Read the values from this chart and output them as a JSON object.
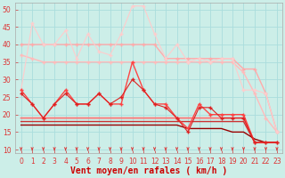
{
  "xlabel": "Vent moyen/en rafales ( km/h )",
  "bg_color": "#cceee8",
  "grid_color": "#aadddd",
  "x_ticks": [
    0,
    1,
    2,
    3,
    4,
    5,
    6,
    7,
    8,
    9,
    10,
    11,
    12,
    13,
    14,
    15,
    16,
    17,
    18,
    19,
    20,
    21,
    22,
    23
  ],
  "ylim": [
    9,
    52
  ],
  "xlim": [
    -0.5,
    23.5
  ],
  "yticks": [
    10,
    15,
    20,
    25,
    30,
    35,
    40,
    45,
    50
  ],
  "series": [
    {
      "x": [
        0,
        1,
        2,
        3,
        4,
        5,
        6,
        7,
        8,
        9,
        10,
        11,
        12,
        13,
        14,
        15,
        16,
        17,
        18,
        19,
        20,
        21,
        22,
        23
      ],
      "y": [
        40,
        40,
        40,
        40,
        40,
        40,
        40,
        40,
        40,
        40,
        40,
        40,
        40,
        36,
        36,
        36,
        36,
        36,
        36,
        36,
        33,
        33,
        26,
        15
      ],
      "color": "#ffaaaa",
      "lw": 1.0,
      "marker": "+",
      "ms": 3.0,
      "zorder": 2
    },
    {
      "x": [
        0,
        1,
        2,
        3,
        4,
        5,
        6,
        7,
        8,
        9,
        10,
        11,
        12,
        13,
        14,
        15,
        16,
        17,
        18,
        19,
        20,
        21,
        22,
        23
      ],
      "y": [
        37,
        36,
        35,
        35,
        35,
        35,
        35,
        35,
        35,
        35,
        35,
        35,
        35,
        35,
        35,
        35,
        35,
        35,
        35,
        35,
        32,
        26,
        19,
        15
      ],
      "color": "#ffbbbb",
      "lw": 1.0,
      "marker": "+",
      "ms": 3.0,
      "zorder": 2
    },
    {
      "x": [
        0,
        1,
        2,
        3,
        4,
        5,
        6,
        7,
        8,
        9,
        10,
        11,
        12,
        13,
        14,
        15,
        16,
        17,
        18,
        19,
        20,
        21,
        22,
        23
      ],
      "y": [
        27,
        46,
        40,
        40,
        44,
        36,
        43,
        38,
        37,
        43,
        51,
        51,
        43,
        36,
        40,
        35,
        36,
        35,
        36,
        36,
        27,
        27,
        26,
        15
      ],
      "color": "#ffcccc",
      "lw": 0.8,
      "marker": "+",
      "ms": 2.5,
      "zorder": 2
    },
    {
      "x": [
        0,
        1,
        2,
        3,
        4,
        5,
        6,
        7,
        8,
        9,
        10,
        11,
        12,
        13,
        14,
        15,
        16,
        17,
        18,
        19,
        20,
        21,
        22,
        23
      ],
      "y": [
        27,
        23,
        19,
        23,
        27,
        23,
        23,
        26,
        23,
        23,
        35,
        27,
        23,
        23,
        19,
        16,
        23,
        20,
        20,
        20,
        20,
        12,
        12,
        12
      ],
      "color": "#ff4444",
      "lw": 1.0,
      "marker": "+",
      "ms": 3.0,
      "zorder": 3
    },
    {
      "x": [
        0,
        1,
        2,
        3,
        4,
        5,
        6,
        7,
        8,
        9,
        10,
        11,
        12,
        13,
        14,
        15,
        16,
        17,
        18,
        19,
        20,
        21,
        22,
        23
      ],
      "y": [
        26,
        23,
        19,
        23,
        26,
        23,
        23,
        26,
        23,
        25,
        30,
        27,
        23,
        22,
        19,
        15,
        22,
        22,
        19,
        19,
        19,
        12,
        12,
        12
      ],
      "color": "#dd2222",
      "lw": 0.8,
      "marker": "+",
      "ms": 2.5,
      "zorder": 3
    },
    {
      "x": [
        0,
        1,
        2,
        3,
        4,
        5,
        6,
        7,
        8,
        9,
        10,
        11,
        12,
        13,
        14,
        15,
        16,
        17,
        18,
        19,
        20,
        21,
        22,
        23
      ],
      "y": [
        19,
        19,
        19,
        19,
        19,
        19,
        19,
        19,
        19,
        19,
        19,
        19,
        19,
        19,
        19,
        19,
        19,
        19,
        19,
        19,
        19,
        12,
        12,
        12
      ],
      "color": "#ff7777",
      "lw": 1.3,
      "marker": null,
      "ms": 0,
      "zorder": 2
    },
    {
      "x": [
        0,
        1,
        2,
        3,
        4,
        5,
        6,
        7,
        8,
        9,
        10,
        11,
        12,
        13,
        14,
        15,
        16,
        17,
        18,
        19,
        20,
        21,
        22,
        23
      ],
      "y": [
        18,
        18,
        18,
        18,
        18,
        18,
        18,
        18,
        18,
        18,
        18,
        18,
        18,
        18,
        18,
        18,
        18,
        18,
        18,
        18,
        18,
        12,
        12,
        12
      ],
      "color": "#cc3333",
      "lw": 1.0,
      "marker": null,
      "ms": 0,
      "zorder": 2
    },
    {
      "x": [
        0,
        1,
        2,
        3,
        4,
        5,
        6,
        7,
        8,
        9,
        10,
        11,
        12,
        13,
        14,
        15,
        16,
        17,
        18,
        19,
        20,
        21,
        22,
        23
      ],
      "y": [
        17,
        17,
        17,
        17,
        17,
        17,
        17,
        17,
        17,
        17,
        17,
        17,
        17,
        17,
        17,
        16,
        16,
        16,
        16,
        15,
        15,
        13,
        12,
        12
      ],
      "color": "#990000",
      "lw": 1.0,
      "marker": null,
      "ms": 0,
      "zorder": 2
    }
  ],
  "arrow_color": "#dd3333",
  "xlabel_color": "#cc0000",
  "xlabel_fontsize": 7,
  "tick_fontsize": 5.5
}
